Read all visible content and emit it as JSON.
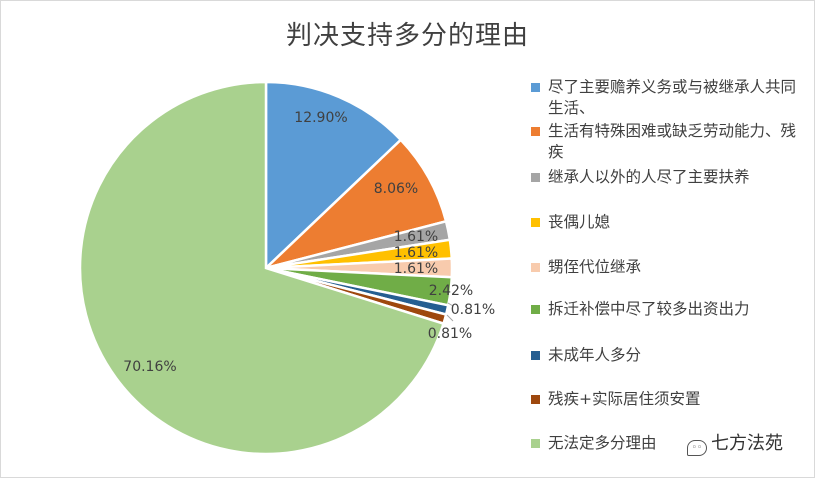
{
  "chart_data": {
    "type": "pie",
    "title": "判决支持多分的理由",
    "slices": [
      {
        "label": "尽了主要赡养义务或与被继承人共同生活、",
        "value": 12.9,
        "display": "12.90%",
        "color": "#5b9bd5"
      },
      {
        "label": "生活有特殊困难或缺乏劳动能力、残疾",
        "value": 8.06,
        "display": "8.06%",
        "color": "#ed7d31"
      },
      {
        "label": "继承人以外的人尽了主要扶养",
        "value": 1.61,
        "display": "1.61%",
        "color": "#a5a5a5"
      },
      {
        "label": "丧偶儿媳",
        "value": 1.61,
        "display": "1.61%",
        "color": "#ffc000"
      },
      {
        "label": "甥侄代位继承",
        "value": 1.61,
        "display": "1.61%",
        "color": "#f8cbad"
      },
      {
        "label": "拆迁补偿中尽了较多出资出力",
        "value": 2.42,
        "display": "2.42%",
        "color": "#70ad47"
      },
      {
        "label": "未成年人多分",
        "value": 0.81,
        "display": "0.81%",
        "color": "#255e91"
      },
      {
        "label": "残疾+实际居住须安置",
        "value": 0.81,
        "display": "0.81%",
        "color": "#9e480e"
      },
      {
        "label": "无法定多分理由",
        "value": 70.16,
        "display": "70.16%",
        "color": "#a9d18e"
      }
    ],
    "legend_position": "right"
  },
  "watermark": {
    "icon": "wechat-icon",
    "text": "七方法苑"
  }
}
